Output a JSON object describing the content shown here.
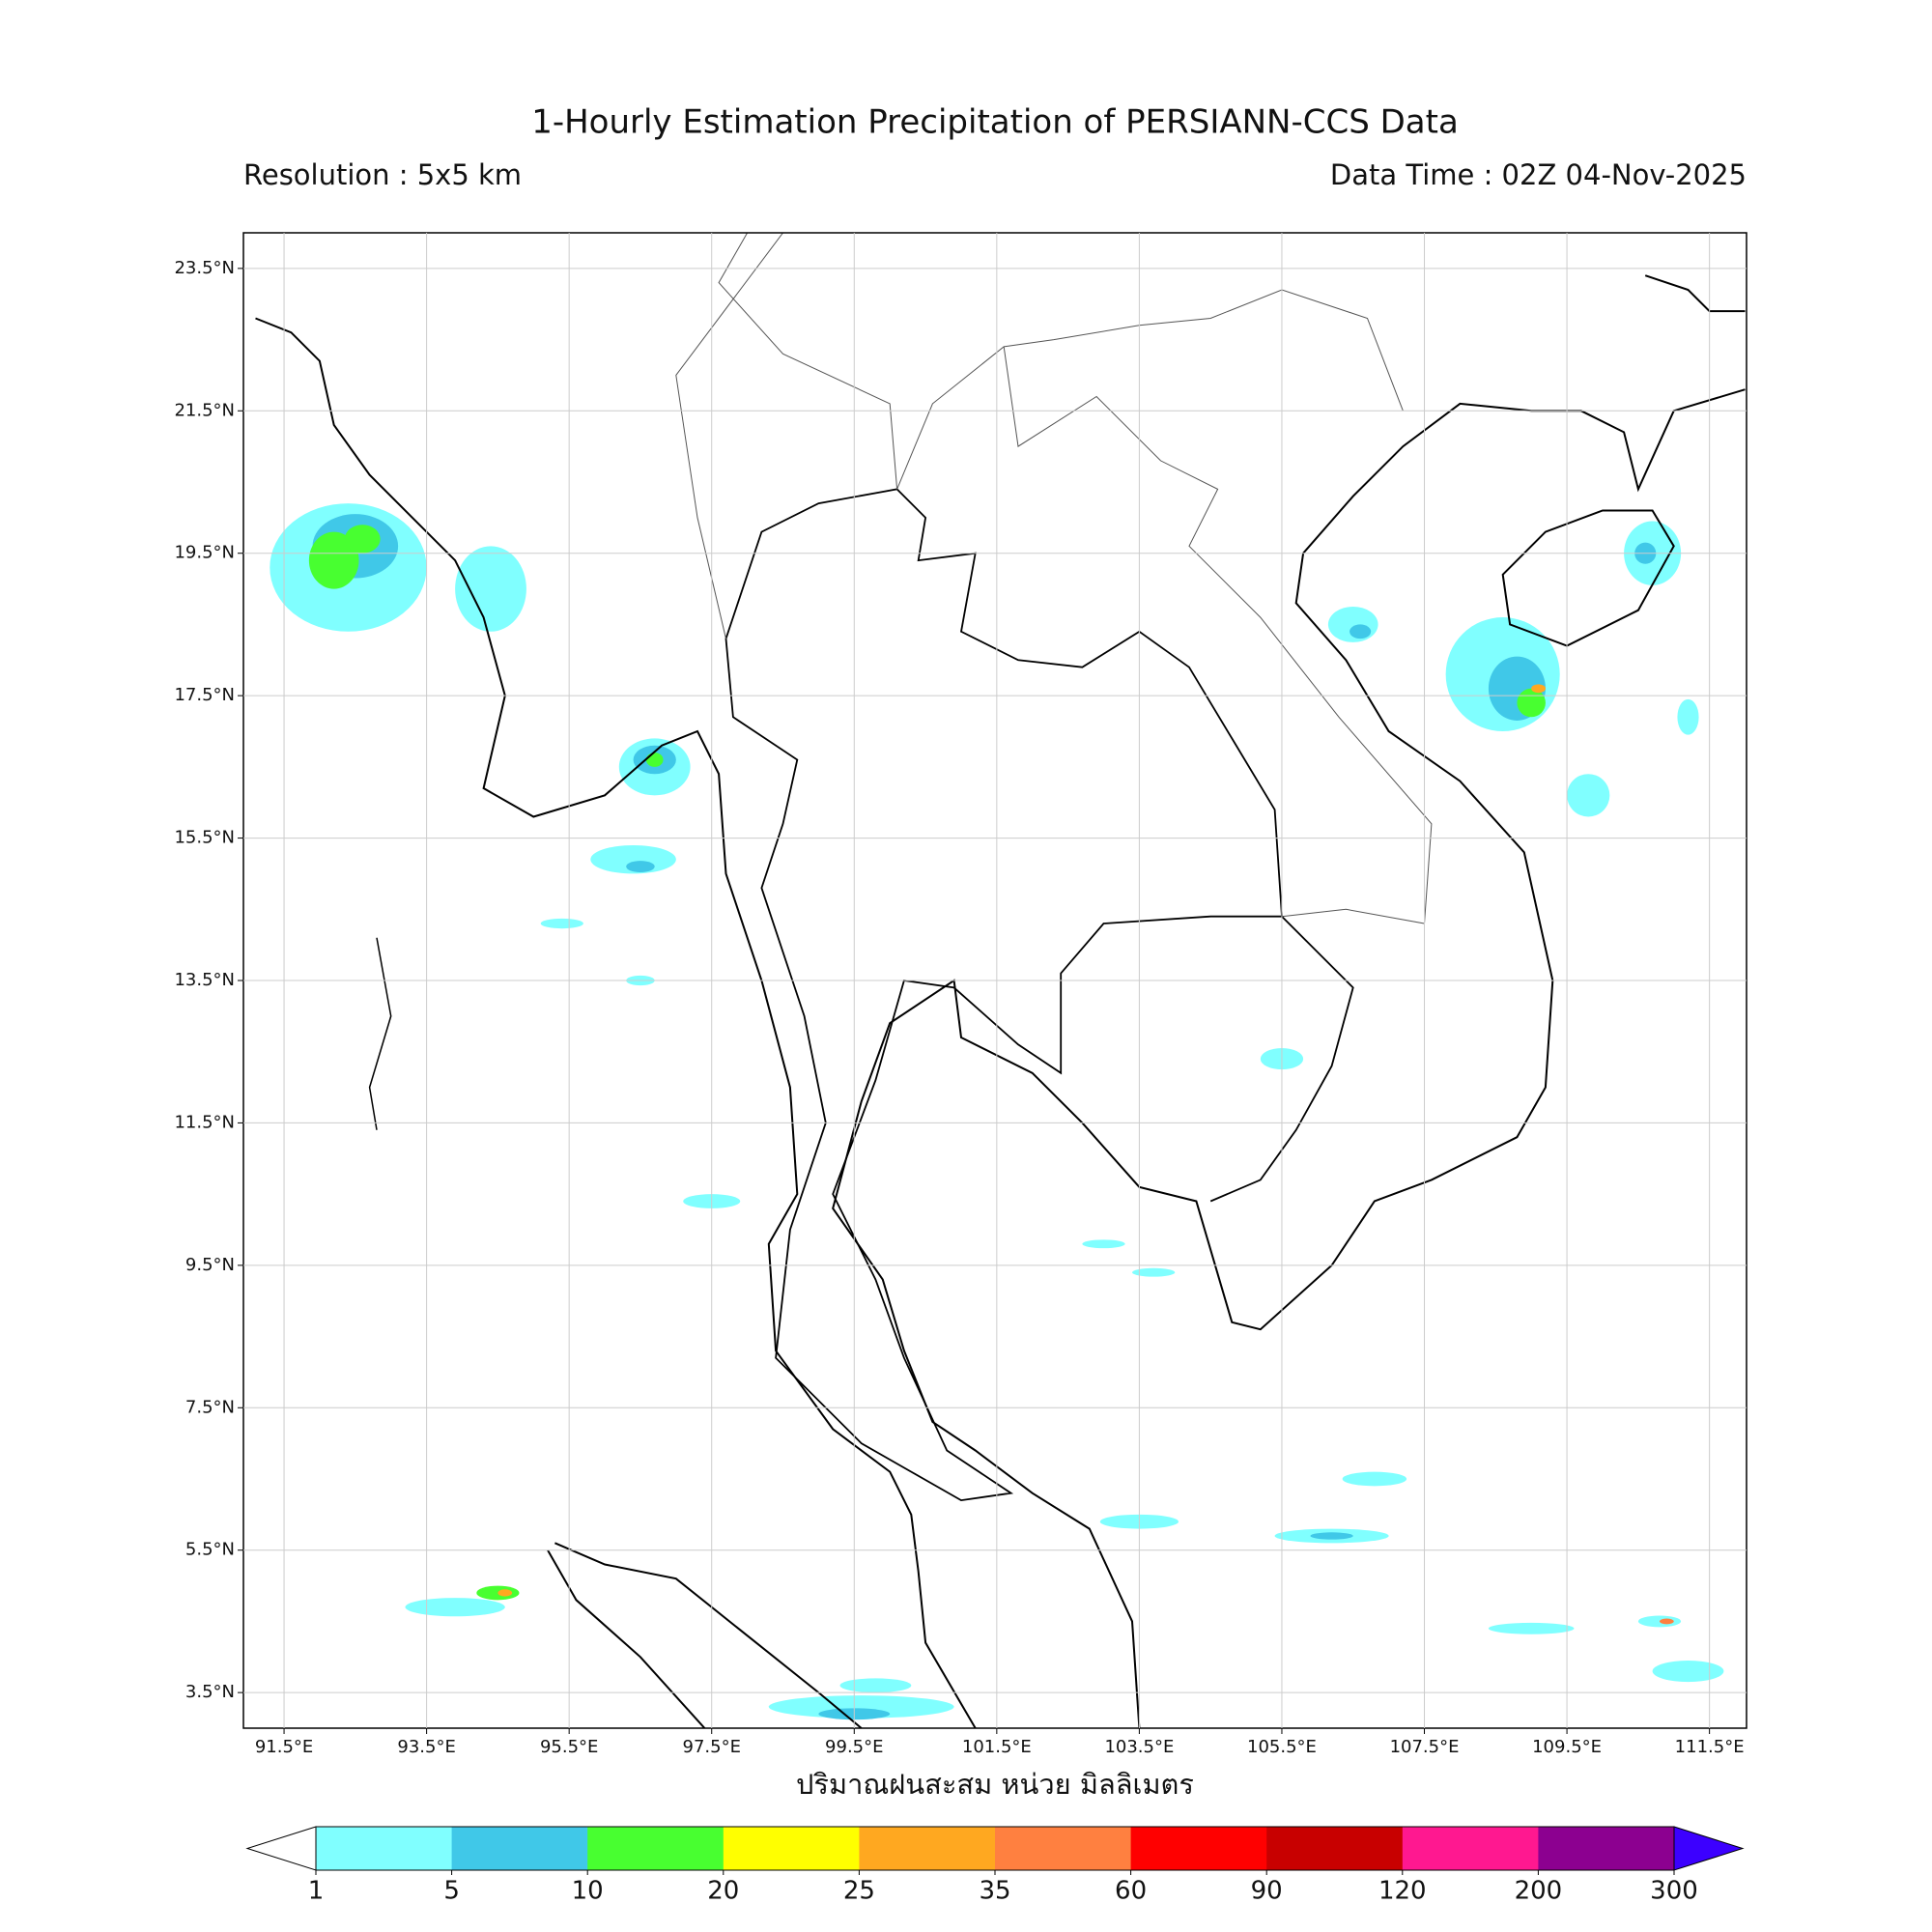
{
  "map": {
    "title": "1-Hourly Estimation Precipitation of PERSIANN-CCS Data",
    "resolution": "Resolution : 5x5 km",
    "data_time": "Data Time : 02Z 04-Nov-2025",
    "xlabel": "ปริมาณฝนสะสม หน่วย มิลลิเมตร",
    "lon_range": [
      90.93,
      112.02
    ],
    "lat_range": [
      3.0,
      24.0
    ],
    "lon_ticks": [
      {
        "value": 91.5,
        "label": "91.5°E"
      },
      {
        "value": 93.5,
        "label": "93.5°E"
      },
      {
        "value": 95.5,
        "label": "95.5°E"
      },
      {
        "value": 97.5,
        "label": "97.5°E"
      },
      {
        "value": 99.5,
        "label": "99.5°E"
      },
      {
        "value": 101.5,
        "label": "101.5°E"
      },
      {
        "value": 103.5,
        "label": "103.5°E"
      },
      {
        "value": 105.5,
        "label": "105.5°E"
      },
      {
        "value": 107.5,
        "label": "107.5°E"
      },
      {
        "value": 109.5,
        "label": "109.5°E"
      },
      {
        "value": 111.5,
        "label": "111.5°E"
      }
    ],
    "lat_ticks": [
      {
        "value": 23.5,
        "label": "23.5°N"
      },
      {
        "value": 21.5,
        "label": "21.5°N"
      },
      {
        "value": 19.5,
        "label": "19.5°N"
      },
      {
        "value": 17.5,
        "label": "17.5°N"
      },
      {
        "value": 15.5,
        "label": "15.5°N"
      },
      {
        "value": 13.5,
        "label": "13.5°N"
      },
      {
        "value": 11.5,
        "label": "11.5°N"
      },
      {
        "value": 9.5,
        "label": "9.5°N"
      },
      {
        "value": 7.5,
        "label": "7.5°N"
      },
      {
        "value": 5.5,
        "label": "5.5°N"
      },
      {
        "value": 3.5,
        "label": "3.5°N"
      }
    ],
    "grid": true,
    "colorbar": {
      "levels": [
        1,
        5,
        10,
        20,
        25,
        35,
        60,
        90,
        120,
        200,
        300
      ],
      "colors": [
        "#80ffff",
        "#40c8e8",
        "#48ff30",
        "#ffff00",
        "#ffa820",
        "#ff8040",
        "#ff0000",
        "#c80000",
        "#ff1890",
        "#8c0090"
      ],
      "over_color": "#3c00ff",
      "under_color": "#ffffff"
    }
  }
}
